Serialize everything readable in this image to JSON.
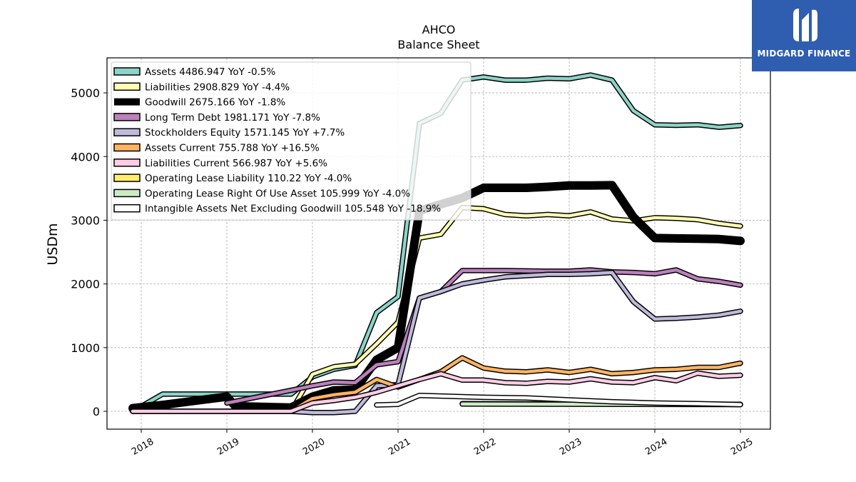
{
  "brand": {
    "name": "MIDGARD FINANCE",
    "bg": "#2f5db0"
  },
  "chart_data": {
    "type": "line",
    "title": "AHCO",
    "subtitle": "Balance  Sheet",
    "ylabel": "USDm",
    "xlabel": "",
    "xlim": [
      2017.6,
      2025.35
    ],
    "ylim": [
      -280,
      5550
    ],
    "xticks": [
      2018,
      2019,
      2020,
      2021,
      2022,
      2023,
      2024,
      2025
    ],
    "xtick_labels": [
      "2018",
      "2019",
      "2020",
      "2021",
      "2022",
      "2023",
      "2024",
      "2025"
    ],
    "yticks": [
      0,
      1000,
      2000,
      3000,
      4000,
      5000
    ],
    "ytick_labels": [
      "0",
      "1000",
      "2000",
      "3000",
      "4000",
      "5000"
    ],
    "grid": true,
    "legend_position": "upper-left",
    "series": [
      {
        "name": "Assets  4486.947 YoY -0.5%",
        "color": "#8dd3c7",
        "width": 4.5,
        "points": [
          [
            2017.9,
            0
          ],
          [
            2018.25,
            270
          ],
          [
            2019.0,
            270
          ],
          [
            2019.75,
            270
          ],
          [
            2020.0,
            540
          ],
          [
            2020.25,
            660
          ],
          [
            2020.5,
            720
          ],
          [
            2020.75,
            1550
          ],
          [
            2021.0,
            1800
          ],
          [
            2021.25,
            4520
          ],
          [
            2021.5,
            4680
          ],
          [
            2021.75,
            5200
          ],
          [
            2022.0,
            5250
          ],
          [
            2022.25,
            5200
          ],
          [
            2022.5,
            5200
          ],
          [
            2022.75,
            5230
          ],
          [
            2023.0,
            5220
          ],
          [
            2023.25,
            5280
          ],
          [
            2023.5,
            5200
          ],
          [
            2023.75,
            4720
          ],
          [
            2024.0,
            4500
          ],
          [
            2024.25,
            4490
          ],
          [
            2024.5,
            4500
          ],
          [
            2024.75,
            4460
          ],
          [
            2025.0,
            4487
          ]
        ]
      },
      {
        "name": "Liabilities  2908.829 YoY -4.4%",
        "color": "#ffffb3",
        "width": 4.5,
        "points": [
          [
            2017.9,
            0
          ],
          [
            2019.75,
            0
          ],
          [
            2020.0,
            580
          ],
          [
            2020.25,
            700
          ],
          [
            2020.5,
            740
          ],
          [
            2020.75,
            1060
          ],
          [
            2021.0,
            1400
          ],
          [
            2021.25,
            2720
          ],
          [
            2021.5,
            2780
          ],
          [
            2021.75,
            3200
          ],
          [
            2022.0,
            3180
          ],
          [
            2022.25,
            3090
          ],
          [
            2022.5,
            3070
          ],
          [
            2022.75,
            3090
          ],
          [
            2023.0,
            3070
          ],
          [
            2023.25,
            3130
          ],
          [
            2023.5,
            3020
          ],
          [
            2023.75,
            2990
          ],
          [
            2024.0,
            3040
          ],
          [
            2024.25,
            3030
          ],
          [
            2024.5,
            3010
          ],
          [
            2024.75,
            2950
          ],
          [
            2025.0,
            2909
          ]
        ]
      },
      {
        "name": "Goodwill  2675.166 YoY -1.8%",
        "color": "#000000",
        "width": 9,
        "points": [
          [
            2017.9,
            50
          ],
          [
            2018.25,
            100
          ],
          [
            2019.0,
            230
          ],
          [
            2019.1,
            80
          ],
          [
            2019.75,
            60
          ],
          [
            2020.0,
            230
          ],
          [
            2020.25,
            330
          ],
          [
            2020.5,
            340
          ],
          [
            2020.75,
            810
          ],
          [
            2021.0,
            1000
          ],
          [
            2021.25,
            3150
          ],
          [
            2021.5,
            3250
          ],
          [
            2021.75,
            3350
          ],
          [
            2022.0,
            3510
          ],
          [
            2022.25,
            3510
          ],
          [
            2022.5,
            3510
          ],
          [
            2022.75,
            3525
          ],
          [
            2023.0,
            3545
          ],
          [
            2023.25,
            3545
          ],
          [
            2023.5,
            3550
          ],
          [
            2023.75,
            3050
          ],
          [
            2024.0,
            2720
          ],
          [
            2024.25,
            2715
          ],
          [
            2024.5,
            2710
          ],
          [
            2024.75,
            2705
          ],
          [
            2025.0,
            2675
          ]
        ]
      },
      {
        "name": "Long Term Debt  1981.171 YoY -7.8%",
        "color": "#bc80bd",
        "width": 4.5,
        "points": [
          [
            2019.0,
            130
          ],
          [
            2019.75,
            330
          ],
          [
            2020.0,
            400
          ],
          [
            2020.25,
            460
          ],
          [
            2020.5,
            450
          ],
          [
            2020.75,
            730
          ],
          [
            2021.0,
            780
          ],
          [
            2021.25,
            1780
          ],
          [
            2021.5,
            1880
          ],
          [
            2021.75,
            2210
          ],
          [
            2022.0,
            2210
          ],
          [
            2022.25,
            2210
          ],
          [
            2022.5,
            2205
          ],
          [
            2022.75,
            2200
          ],
          [
            2023.0,
            2200
          ],
          [
            2023.25,
            2220
          ],
          [
            2023.5,
            2190
          ],
          [
            2023.75,
            2180
          ],
          [
            2024.0,
            2160
          ],
          [
            2024.25,
            2220
          ],
          [
            2024.5,
            2080
          ],
          [
            2024.75,
            2040
          ],
          [
            2025.0,
            1981
          ]
        ]
      },
      {
        "name": "Stockholders Equity  1571.145 YoY +7.7%",
        "color": "#bebada",
        "width": 4.5,
        "points": [
          [
            2017.9,
            0
          ],
          [
            2019.75,
            0
          ],
          [
            2020.0,
            -20
          ],
          [
            2020.25,
            -20
          ],
          [
            2020.5,
            0
          ],
          [
            2020.75,
            400
          ],
          [
            2021.0,
            420
          ],
          [
            2021.25,
            1780
          ],
          [
            2021.5,
            1880
          ],
          [
            2021.75,
            2000
          ],
          [
            2022.0,
            2060
          ],
          [
            2022.25,
            2110
          ],
          [
            2022.5,
            2130
          ],
          [
            2022.75,
            2150
          ],
          [
            2023.0,
            2150
          ],
          [
            2023.25,
            2160
          ],
          [
            2023.5,
            2180
          ],
          [
            2023.75,
            1720
          ],
          [
            2024.0,
            1450
          ],
          [
            2024.25,
            1460
          ],
          [
            2024.5,
            1480
          ],
          [
            2024.75,
            1510
          ],
          [
            2025.0,
            1571
          ]
        ]
      },
      {
        "name": "Assets Current  755.788 YoY +16.5%",
        "color": "#fdb462",
        "width": 4.5,
        "points": [
          [
            2019.75,
            0
          ],
          [
            2020.0,
            200
          ],
          [
            2020.25,
            260
          ],
          [
            2020.5,
            300
          ],
          [
            2020.75,
            500
          ],
          [
            2021.0,
            380
          ],
          [
            2021.25,
            500
          ],
          [
            2021.5,
            620
          ],
          [
            2021.75,
            840
          ],
          [
            2022.0,
            680
          ],
          [
            2022.25,
            630
          ],
          [
            2022.5,
            620
          ],
          [
            2022.75,
            650
          ],
          [
            2023.0,
            610
          ],
          [
            2023.25,
            660
          ],
          [
            2023.5,
            590
          ],
          [
            2023.75,
            610
          ],
          [
            2024.0,
            650
          ],
          [
            2024.25,
            660
          ],
          [
            2024.5,
            690
          ],
          [
            2024.75,
            690
          ],
          [
            2025.0,
            756
          ]
        ]
      },
      {
        "name": "Liabilities Current  566.987 YoY +5.6%",
        "color": "#fccde5",
        "width": 4.5,
        "points": [
          [
            2017.9,
            0
          ],
          [
            2019.75,
            0
          ],
          [
            2020.0,
            130
          ],
          [
            2020.25,
            170
          ],
          [
            2020.5,
            220
          ],
          [
            2020.75,
            300
          ],
          [
            2021.0,
            400
          ],
          [
            2021.25,
            500
          ],
          [
            2021.5,
            590
          ],
          [
            2021.75,
            490
          ],
          [
            2022.0,
            490
          ],
          [
            2022.25,
            450
          ],
          [
            2022.5,
            440
          ],
          [
            2022.75,
            470
          ],
          [
            2023.0,
            460
          ],
          [
            2023.25,
            510
          ],
          [
            2023.5,
            460
          ],
          [
            2023.75,
            450
          ],
          [
            2024.0,
            530
          ],
          [
            2024.25,
            480
          ],
          [
            2024.5,
            600
          ],
          [
            2024.75,
            550
          ],
          [
            2025.0,
            567
          ]
        ]
      },
      {
        "name": "Operating Lease Liability  110.22 YoY -4.0%",
        "color": "#ffed6f",
        "width": 4.5,
        "points": [
          [
            2021.75,
            120
          ],
          [
            2025.0,
            110
          ]
        ]
      },
      {
        "name": "Operating Lease Right Of Use Asset  105.999 YoY -4.0%",
        "color": "#ccebc5",
        "width": 4.5,
        "points": [
          [
            2021.75,
            115
          ],
          [
            2025.0,
            106
          ]
        ]
      },
      {
        "name": "Intangible Assets Net Excluding Goodwill  105.548 YoY -18.9%",
        "color": "#ffffff",
        "width": 4.5,
        "points": [
          [
            2020.75,
            100
          ],
          [
            2021.0,
            110
          ],
          [
            2021.25,
            250
          ],
          [
            2021.5,
            240
          ],
          [
            2021.75,
            230
          ],
          [
            2022.0,
            220
          ],
          [
            2022.5,
            210
          ],
          [
            2023.0,
            180
          ],
          [
            2023.5,
            150
          ],
          [
            2024.0,
            130
          ],
          [
            2024.5,
            120
          ],
          [
            2025.0,
            106
          ]
        ]
      }
    ]
  }
}
